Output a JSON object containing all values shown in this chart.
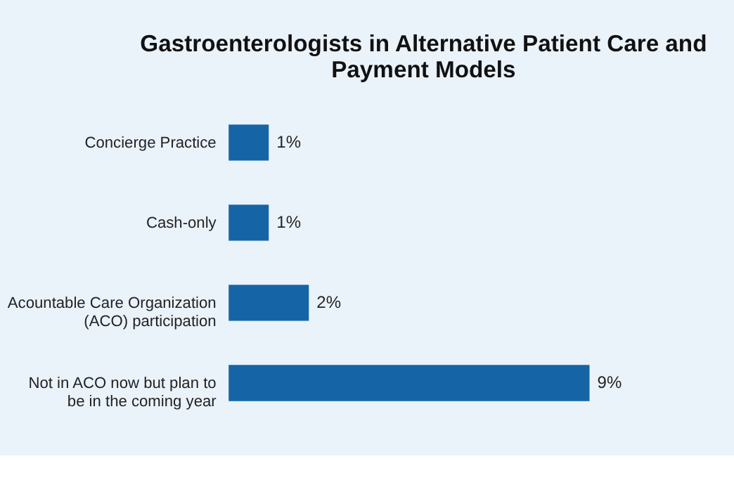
{
  "chart_data": {
    "type": "bar",
    "orientation": "horizontal",
    "title": "Gastroenterologists in Alternative Patient Care and Payment Models",
    "categories": [
      "Concierge Practice",
      "Cash-only",
      "Acountable Care Organization (ACO) participation",
      "Not in ACO now but plan to be in the coming year"
    ],
    "values": [
      1,
      1,
      2,
      9
    ],
    "color": "#1565a6",
    "value_labels": [
      "1%",
      "1%",
      "2%",
      "9%"
    ]
  }
}
